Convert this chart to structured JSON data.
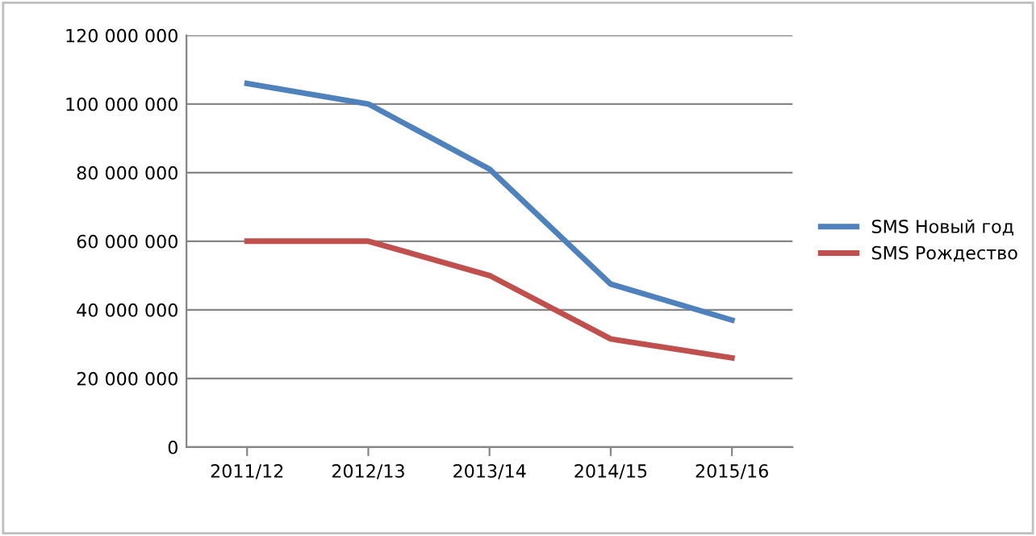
{
  "chart_data": {
    "type": "line",
    "categories": [
      "2011/12",
      "2012/13",
      "2013/14",
      "2014/15",
      "2015/16"
    ],
    "series": [
      {
        "name": "SMS Новый год",
        "color": "#4f81bd",
        "values": [
          106000000,
          100000000,
          81000000,
          47500000,
          37000000
        ]
      },
      {
        "name": "SMS Рождество",
        "color": "#c0504d",
        "values": [
          60000000,
          60000000,
          50000000,
          31500000,
          26000000
        ]
      }
    ],
    "ylim": [
      0,
      120000000
    ],
    "yticks": [
      0,
      {
        "value": 20000000,
        "label": "20 000 000"
      },
      {
        "value": 40000000,
        "label": "40 000 000"
      },
      {
        "value": 60000000,
        "label": "60 000 000"
      },
      {
        "value": 80000000,
        "label": "80 000 000"
      },
      {
        "value": 100000000,
        "label": "100 000 000"
      },
      {
        "value": 120000000,
        "label": "120 000 000"
      }
    ],
    "grid": "y",
    "legend": "right",
    "marker": "none",
    "line_style": "solid"
  }
}
